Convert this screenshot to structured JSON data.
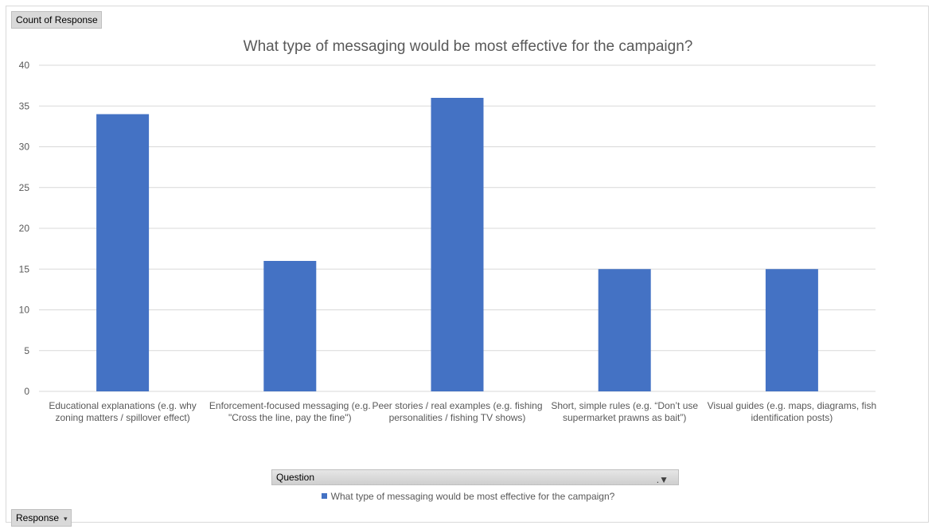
{
  "pivot": {
    "value_field": "Count of Response",
    "row_field": "Response",
    "column_field": "Question"
  },
  "colors": {
    "bar": "#4472c4",
    "grid": "#d9d9d9",
    "text": "#595959"
  },
  "icons": {
    "filter": "filter-icon",
    "dropdown": "dropdown-arrow-icon"
  },
  "chart_data": {
    "type": "bar",
    "title": "What type of messaging would be most effective for the campaign?",
    "xlabel": "",
    "ylabel": "",
    "ylim": [
      0,
      40
    ],
    "yticks": [
      0,
      5,
      10,
      15,
      20,
      25,
      30,
      35,
      40
    ],
    "grid": true,
    "legend_position": "bottom",
    "categories": [
      "Educational explanations (e.g. why zoning matters / spillover effect)",
      "Enforcement-focused messaging (e.g. \"Cross the line, pay the fine\")",
      "Peer stories / real examples (e.g. fishing personalities / fishing TV shows)",
      "Short, simple rules (e.g. “Don’t use supermarket prawns as bait”)",
      "Visual guides (e.g. maps, diagrams, fish identification posts)"
    ],
    "series": [
      {
        "name": "What type of messaging would be most effective for the campaign?",
        "values": [
          34,
          16,
          36,
          15,
          15
        ]
      }
    ]
  }
}
